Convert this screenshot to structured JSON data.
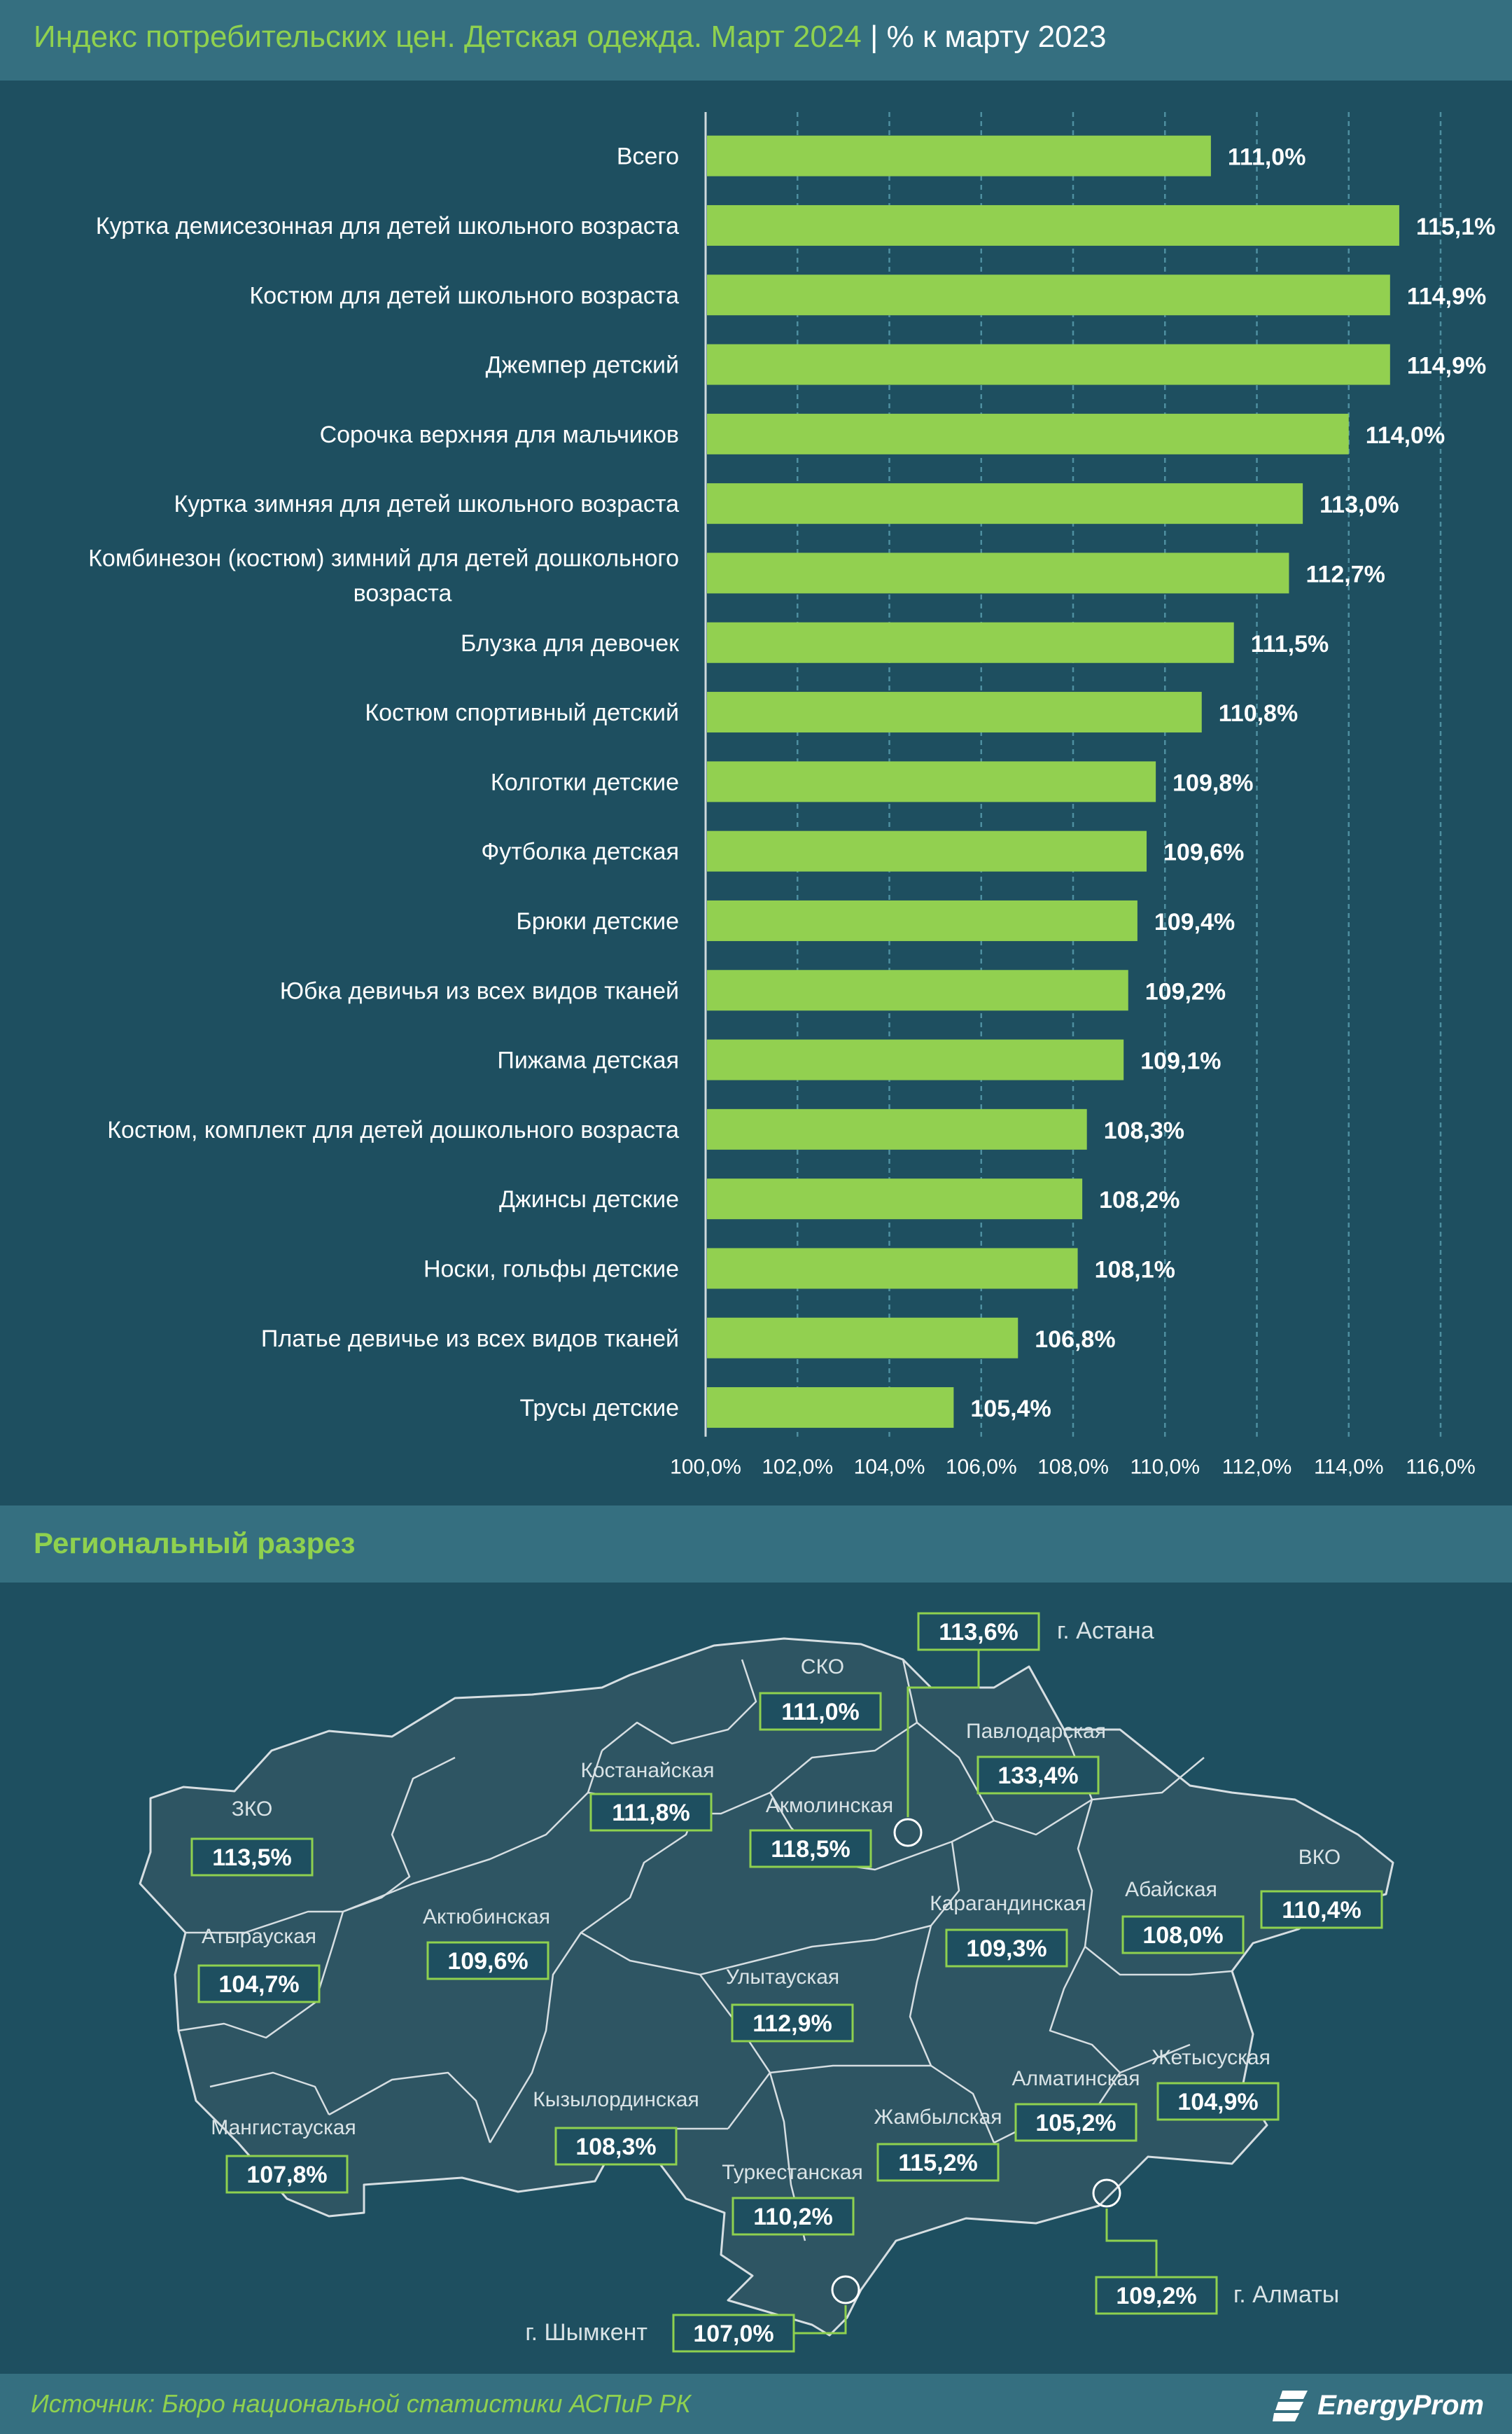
{
  "title": {
    "main": "Индекс потребительских цен. Детская одежда. Март 2024",
    "separator": "|",
    "sub": "% к марту 2023"
  },
  "chart_data": {
    "type": "bar",
    "orientation": "horizontal",
    "categories": [
      "Всего",
      "Куртка демисезонная для детей школьного возраста",
      "Костюм для детей школьного возраста",
      "Джемпер детский",
      "Сорочка верхняя для мальчиков",
      "Куртка зимняя для детей школьного возраста",
      "Комбинезон (костюм) зимний для детей дошкольного возраста",
      "Блузка для девочек",
      "Костюм спортивный детский",
      "Колготки детские",
      "Футболка детская",
      "Брюки детские",
      "Юбка девичья из всех видов тканей",
      "Пижама детская",
      "Костюм, комплект для детей дошкольного возраста",
      "Джинсы детские",
      "Носки, гольфы детские",
      "Платье девичье из всех видов тканей",
      "Трусы детские"
    ],
    "values": [
      111.0,
      115.1,
      114.9,
      114.9,
      114.0,
      113.0,
      112.7,
      111.5,
      110.8,
      109.8,
      109.6,
      109.4,
      109.2,
      109.1,
      108.3,
      108.2,
      108.1,
      106.8,
      105.4
    ],
    "value_labels": [
      "111,0%",
      "115,1%",
      "114,9%",
      "114,9%",
      "114,0%",
      "113,0%",
      "112,7%",
      "111,5%",
      "110,8%",
      "109,8%",
      "109,6%",
      "109,4%",
      "109,2%",
      "109,1%",
      "108,3%",
      "108,2%",
      "108,1%",
      "106,8%",
      "105,4%"
    ],
    "xlim": [
      100,
      116
    ],
    "ticks": [
      100,
      102,
      104,
      106,
      108,
      110,
      112,
      114,
      116
    ],
    "tick_labels": [
      "100,0%",
      "102,0%",
      "104,0%",
      "106,0%",
      "108,0%",
      "110,0%",
      "112,0%",
      "114,0%",
      "116,0%"
    ],
    "grid": "vertical dashed",
    "bar_color": "#92d050"
  },
  "region_title": "Региональный разрез",
  "map": {
    "regions": [
      {
        "name": "ЗКО",
        "value": "113,5%"
      },
      {
        "name": "Атырауская",
        "value": "104,7%"
      },
      {
        "name": "Мангистауская",
        "value": "107,8%"
      },
      {
        "name": "Актюбинская",
        "value": "109,6%"
      },
      {
        "name": "Костанайская",
        "value": "111,8%"
      },
      {
        "name": "СКО",
        "value": "111,0%"
      },
      {
        "name": "Акмолинская",
        "value": "118,5%"
      },
      {
        "name": "Павлодарская",
        "value": "133,4%"
      },
      {
        "name": "Карагандинская",
        "value": "109,3%"
      },
      {
        "name": "Абайская",
        "value": "108,0%"
      },
      {
        "name": "ВКО",
        "value": "110,4%"
      },
      {
        "name": "Улытауская",
        "value": "112,9%"
      },
      {
        "name": "Кызылординская",
        "value": "108,3%"
      },
      {
        "name": "Жамбылская",
        "value": "115,2%"
      },
      {
        "name": "Туркестанская",
        "value": "110,2%"
      },
      {
        "name": "Алматинская",
        "value": "105,2%"
      },
      {
        "name": "Жетысуская",
        "value": "104,9%"
      }
    ],
    "cities": [
      {
        "name": "г. Астана",
        "value": "113,6%"
      },
      {
        "name": "г. Алматы",
        "value": "109,2%"
      },
      {
        "name": "г. Шымкент",
        "value": "107,0%"
      }
    ]
  },
  "footer": {
    "source": "Источник: Бюро национальной статистики АСПиР РК",
    "logo": "EnergyProm"
  },
  "colors": {
    "background": "#1e4f60",
    "header": "#356f80",
    "accent": "#8fd14f",
    "bar": "#92d050",
    "map_fill": "#2e5563",
    "map_stroke": "#cfd8dc"
  }
}
